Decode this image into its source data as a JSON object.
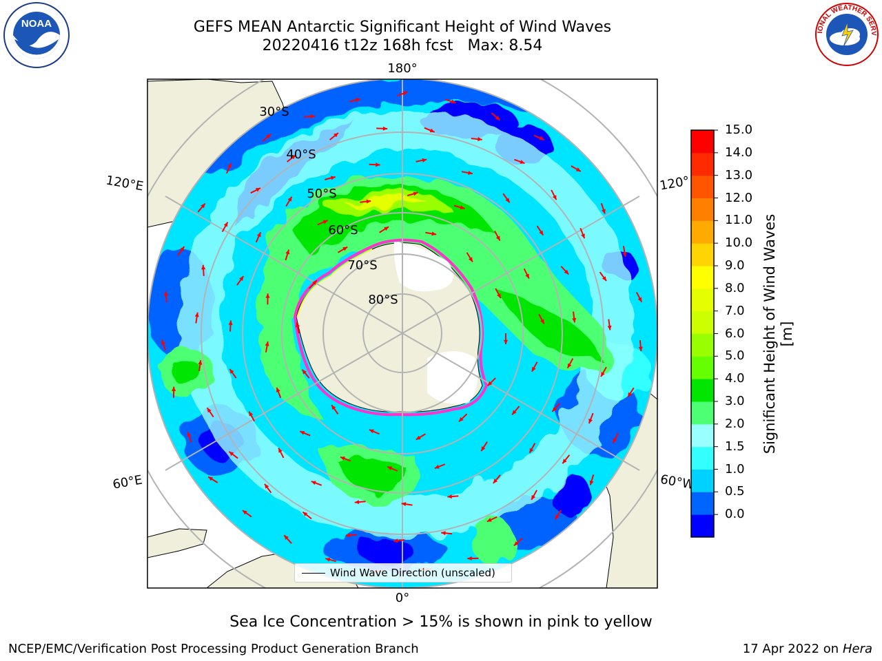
{
  "title": {
    "line1": "GEFS MEAN Antarctic Significant Height of Wind Waves",
    "line2": "20220416 t12z 168h fcst   Max: 8.54"
  },
  "map": {
    "longitude_labels": [
      "180°",
      "120°E",
      "120°",
      "60°E",
      "60°W",
      "0°"
    ],
    "latitude_labels": [
      "30°S",
      "40°S",
      "50°S",
      "60°S",
      "70°S",
      "80°S"
    ],
    "colors": {
      "land": "#efefdc",
      "ice_shelf": "#ffffff",
      "grid": "#b3b3b3",
      "arrow": "#ff0000",
      "ice_edge": [
        "#ff33cc",
        "#ffff00"
      ]
    }
  },
  "legend": {
    "label": "Wind Wave Direction (unscaled)"
  },
  "colorbar": {
    "title": "Significant Height of Wind Waves [m]",
    "ticks": [
      "15.0",
      "14.0",
      "13.0",
      "12.0",
      "11.0",
      "10.0",
      "9.0",
      "8.0",
      "7.0",
      "6.0",
      "5.0",
      "4.0",
      "3.0",
      "2.0",
      "1.5",
      "1.0",
      "0.5",
      "0.0"
    ],
    "colors": [
      "#0000ff",
      "#0064ff",
      "#00d2ff",
      "#33ffff",
      "#99ffff",
      "#4dff73",
      "#00e600",
      "#66ff00",
      "#99ff00",
      "#ccff00",
      "#e6ff00",
      "#ffff00",
      "#ffd400",
      "#ffaa00",
      "#ff8000",
      "#ff5500",
      "#ff2a00",
      "#ff0000"
    ]
  },
  "caption": "Sea Ice Concentration > 15% is shown in pink to yellow",
  "footer": {
    "left": "NCEP/EMC/Verification Post Processing Product Generation Branch",
    "date": "17 Apr 2022 on ",
    "host": "Hera"
  },
  "logos": {
    "left": "NOAA",
    "right": "NATIONAL WEATHER SERVICE"
  }
}
